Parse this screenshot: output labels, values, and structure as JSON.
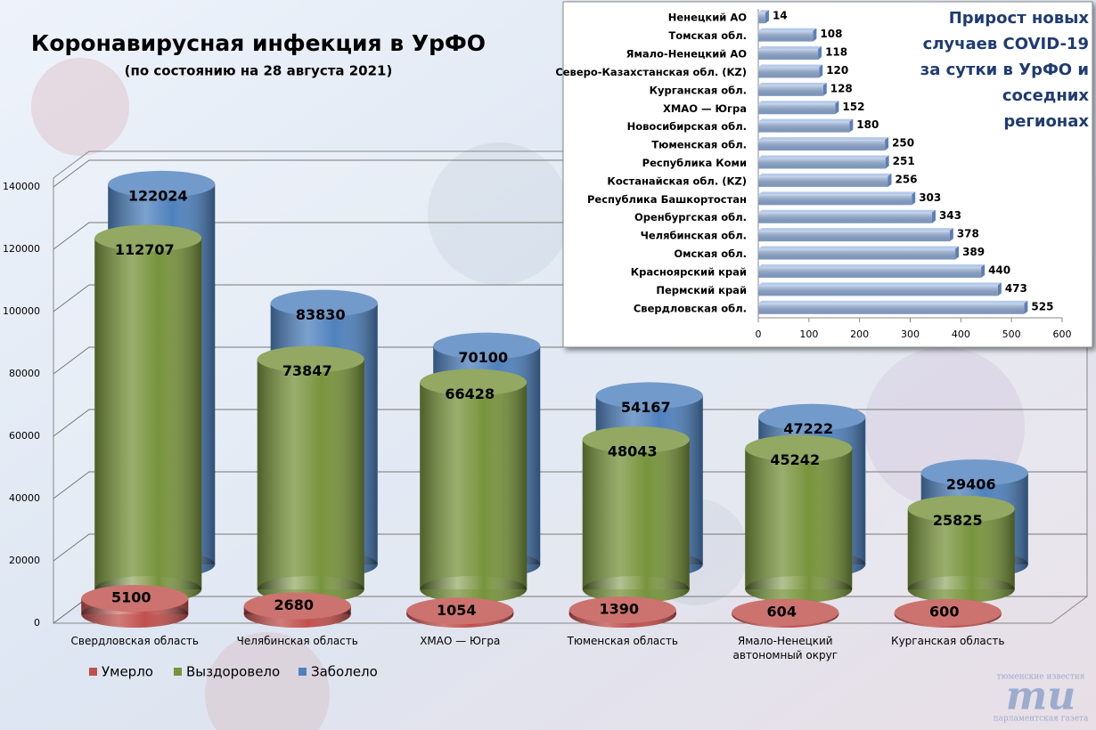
{
  "chart_data": [
    {
      "type": "cylinder",
      "title": "Коронавирусная инфекция в УрФО",
      "subtitle": "(по состоянию на 28 августа 2021)",
      "categories": [
        "Свердловская область",
        "Челябинская область",
        "ХМАО — Югра",
        "Тюменская область",
        "Ямало-Ненецкий автономный округ",
        "Курганская область"
      ],
      "series": [
        {
          "name": "Умерло",
          "color": "#c0504d",
          "values": [
            5100,
            2680,
            1054,
            1390,
            604,
            600
          ]
        },
        {
          "name": "Выздоровело",
          "color": "#77933c",
          "values": [
            112707,
            73847,
            66428,
            48043,
            45242,
            25825
          ]
        },
        {
          "name": "Заболело",
          "color": "#4f81bd",
          "values": [
            122024,
            83830,
            70100,
            54167,
            47222,
            29406
          ]
        }
      ],
      "ylim": [
        0,
        140000
      ],
      "yticks": [
        0,
        20000,
        40000,
        60000,
        80000,
        100000,
        120000,
        140000
      ],
      "grid": true
    },
    {
      "type": "hbar",
      "title": "Прирост новых случаев COVID-19 за сутки в УрФО и соседних регионах",
      "categories": [
        "Ненецкий АО",
        "Томская обл.",
        "Ямало-Ненецкий АО",
        "Северо-Казахстанская обл. (KZ)",
        "Курганская обл.",
        "ХМАО — Югра",
        "Новосибирская обл.",
        "Тюменская обл.",
        "Республика Коми",
        "Костанайская обл. (KZ)",
        "Республика Башкортостан",
        "Оренбургская обл.",
        "Челябинская обл.",
        "Омская обл.",
        "Красноярский край",
        "Пермский край",
        "Свердловская обл."
      ],
      "values": [
        14,
        108,
        118,
        120,
        128,
        152,
        180,
        250,
        251,
        256,
        303,
        343,
        378,
        389,
        440,
        473,
        525
      ],
      "color": "#95b3e0",
      "xlim": [
        0,
        600
      ],
      "xticks": [
        0,
        100,
        200,
        300,
        400,
        500,
        600
      ]
    }
  ],
  "logo": {
    "top": "тюменские известия",
    "mark": "ти",
    "bottom": "парламентская газета"
  }
}
